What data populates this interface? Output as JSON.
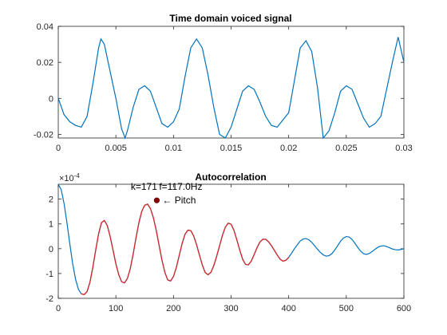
{
  "chart_data": [
    {
      "type": "line",
      "title": "Time domain voiced signal",
      "xlim": [
        0,
        0.03
      ],
      "ylim": [
        -0.022,
        0.04
      ],
      "xticks": [
        0,
        0.005,
        0.01,
        0.015,
        0.02,
        0.025,
        0.03
      ],
      "xtick_labels": [
        "0",
        "0.005",
        "0.01",
        "0.015",
        "0.02",
        "0.025",
        "0.03"
      ],
      "yticks": [
        -0.02,
        0,
        0.02,
        0.04
      ],
      "ytick_labels": [
        "-0.02",
        "0",
        "0.02",
        "0.04"
      ],
      "grid": false,
      "series": [
        {
          "color": "#0072bd",
          "x": [
            0,
            0.0005,
            0.001,
            0.0015,
            0.002,
            0.0025,
            0.003,
            0.0035,
            0.0037,
            0.004,
            0.0045,
            0.005,
            0.0055,
            0.0058,
            0.006,
            0.0065,
            0.007,
            0.0075,
            0.008,
            0.0085,
            0.009,
            0.0095,
            0.01,
            0.0105,
            0.011,
            0.0115,
            0.012,
            0.0125,
            0.013,
            0.0135,
            0.014,
            0.0145,
            0.015,
            0.0155,
            0.016,
            0.0165,
            0.017,
            0.0175,
            0.018,
            0.0185,
            0.019,
            0.0195,
            0.02,
            0.0205,
            0.021,
            0.0215,
            0.022,
            0.0225,
            0.023,
            0.0235,
            0.024,
            0.0245,
            0.025,
            0.0255,
            0.026,
            0.0265,
            0.027,
            0.0275,
            0.028,
            0.0285,
            0.029,
            0.0295,
            0.03
          ],
          "y": [
            0,
            -0.009,
            -0.013,
            -0.015,
            -0.016,
            -0.01,
            0.008,
            0.028,
            0.033,
            0.03,
            0.015,
            0.0,
            -0.017,
            -0.024,
            -0.018,
            -0.005,
            0.005,
            0.007,
            0.004,
            -0.005,
            -0.014,
            -0.016,
            -0.013,
            -0.006,
            0.012,
            0.028,
            0.033,
            0.028,
            0.013,
            -0.005,
            -0.02,
            -0.022,
            -0.016,
            -0.006,
            0.004,
            0.007,
            0.005,
            -0.002,
            -0.01,
            -0.015,
            -0.016,
            -0.012,
            -0.008,
            0.01,
            0.028,
            0.032,
            0.026,
            0.006,
            -0.022,
            -0.018,
            -0.008,
            0.004,
            0.007,
            0.005,
            -0.003,
            -0.011,
            -0.016,
            -0.014,
            -0.01,
            0.005,
            0.02,
            0.034,
            0.02
          ]
        }
      ]
    },
    {
      "type": "line",
      "title": "Autocorrelation",
      "xlim": [
        0,
        600
      ],
      "ylim": [
        -2,
        2.6
      ],
      "y_multiplier_label": "×10",
      "y_multiplier_exponent": "-4",
      "xticks": [
        0,
        100,
        200,
        300,
        400,
        500,
        600
      ],
      "xtick_labels": [
        "0",
        "100",
        "200",
        "300",
        "400",
        "500",
        "600"
      ],
      "yticks": [
        -2,
        -1,
        0,
        1,
        2
      ],
      "ytick_labels": [
        "-2",
        "-1",
        "0",
        "1",
        "2"
      ],
      "grid": false,
      "series": [
        {
          "color": "#0072bd",
          "x": [
            0,
            5,
            10,
            15,
            20,
            25,
            30,
            35,
            40,
            45,
            50,
            55,
            60,
            65,
            70,
            75,
            80,
            85,
            90,
            95,
            100,
            105,
            110,
            115,
            120,
            125,
            130,
            135,
            140,
            145,
            150,
            155,
            160,
            165,
            170,
            175,
            180,
            185,
            190,
            195,
            200,
            205,
            210,
            215,
            220,
            225,
            230,
            235,
            240,
            245,
            250,
            255,
            260,
            265,
            270,
            275,
            280,
            285,
            290,
            295,
            300,
            305,
            310,
            315,
            320,
            325,
            330,
            335,
            340,
            345,
            350,
            355,
            360,
            365,
            370,
            375,
            380,
            385,
            390,
            395,
            400,
            405,
            410,
            415,
            420,
            425,
            430,
            435,
            440,
            445,
            450,
            455,
            460,
            465,
            470,
            475,
            480,
            485,
            490,
            495,
            500,
            505,
            510,
            515,
            520,
            525,
            530,
            535,
            540,
            545,
            550,
            555,
            560,
            565,
            570,
            575,
            580,
            585,
            590,
            595,
            600
          ],
          "y": [
            2.6,
            2.39,
            1.83,
            1.06,
            0.2,
            -0.6,
            -1.23,
            -1.64,
            -1.82,
            -1.85,
            -1.73,
            -1.35,
            -0.75,
            -0.05,
            0.6,
            1.05,
            1.14,
            0.94,
            0.5,
            -0.05,
            -0.61,
            -1.05,
            -1.33,
            -1.38,
            -1.2,
            -0.8,
            -0.22,
            0.45,
            1.05,
            1.51,
            1.75,
            1.8,
            1.62,
            1.26,
            0.75,
            0.14,
            -0.46,
            -0.95,
            -1.26,
            -1.3,
            -1.12,
            -0.75,
            -0.27,
            0.21,
            0.58,
            0.75,
            0.73,
            0.52,
            0.17,
            -0.25,
            -0.65,
            -0.96,
            -1.05,
            -0.95,
            -0.68,
            -0.3,
            0.12,
            0.54,
            0.87,
            1.03,
            0.99,
            0.74,
            0.36,
            -0.05,
            -0.42,
            -0.63,
            -0.65,
            -0.5,
            -0.24,
            0.04,
            0.27,
            0.38,
            0.38,
            0.28,
            0.12,
            -0.06,
            -0.25,
            -0.42,
            -0.5,
            -0.47,
            -0.35,
            -0.18,
            0.0,
            0.16,
            0.31,
            0.39,
            0.41,
            0.36,
            0.26,
            0.12,
            -0.02,
            -0.15,
            -0.25,
            -0.3,
            -0.28,
            -0.2,
            -0.05,
            0.12,
            0.3,
            0.43,
            0.49,
            0.47,
            0.37,
            0.22,
            0.05,
            -0.1,
            -0.2,
            -0.23,
            -0.19,
            -0.11,
            -0.02,
            0.06,
            0.11,
            0.12,
            0.09,
            0.04,
            -0.01,
            -0.04,
            -0.05,
            -0.03,
            0.0
          ]
        },
        {
          "color": "#d62728",
          "x": [
            40,
            45,
            50,
            55,
            60,
            65,
            70,
            75,
            80,
            85,
            90,
            95,
            100,
            105,
            110,
            115,
            120,
            125,
            130,
            135,
            140,
            145,
            150,
            155,
            160,
            165,
            170,
            175,
            180,
            185,
            190,
            195,
            200,
            205,
            210,
            215,
            220,
            225,
            230,
            235,
            240,
            245,
            250,
            255,
            260,
            265,
            270,
            275,
            280,
            285,
            290,
            295,
            300,
            305,
            310,
            315,
            320,
            325,
            330,
            335,
            340,
            345,
            350,
            355,
            360,
            365,
            370,
            375,
            380,
            385,
            390,
            395,
            400
          ],
          "y": [
            -1.82,
            -1.85,
            -1.73,
            -1.35,
            -0.75,
            -0.05,
            0.6,
            1.05,
            1.14,
            0.94,
            0.5,
            -0.05,
            -0.61,
            -1.05,
            -1.33,
            -1.38,
            -1.2,
            -0.8,
            -0.22,
            0.45,
            1.05,
            1.51,
            1.75,
            1.8,
            1.62,
            1.26,
            0.75,
            0.14,
            -0.46,
            -0.95,
            -1.26,
            -1.3,
            -1.12,
            -0.75,
            -0.27,
            0.21,
            0.58,
            0.75,
            0.73,
            0.52,
            0.17,
            -0.25,
            -0.65,
            -0.96,
            -1.05,
            -0.95,
            -0.68,
            -0.3,
            0.12,
            0.54,
            0.87,
            1.03,
            0.99,
            0.74,
            0.36,
            -0.05,
            -0.42,
            -0.63,
            -0.65,
            -0.5,
            -0.24,
            0.04,
            0.27,
            0.38,
            0.38,
            0.28,
            0.12,
            -0.06,
            -0.25,
            -0.42,
            -0.5,
            -0.47,
            -0.35
          ]
        }
      ],
      "markers": [
        {
          "x": 171,
          "y": 1.95,
          "color": "#8b0000"
        }
      ],
      "annotations": {
        "k_text": "k=171",
        "f_text": "f=117.0Hz",
        "pitch_text": "← Pitch"
      }
    }
  ]
}
